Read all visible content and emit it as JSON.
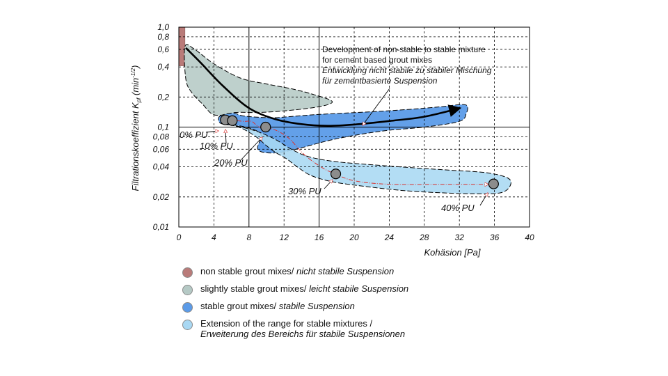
{
  "colors": {
    "non_stable": "#b97b79",
    "slightly_stable": "#b5c9c5",
    "stable": "#5b9be8",
    "extension": "#a9d8f3",
    "trend_arrow": "#000000",
    "pu_path": "#d9322f",
    "pu_marker": "#8c8c8c"
  },
  "chart_data": {
    "type": "scatter",
    "xlabel": "Kohäsion [Pa]",
    "ylabel": "Filtrationskoeffizient K",
    "ylabel_sub": "pf",
    "ylabel_unit": "(min",
    "ylabel_unit_sup": "-1/2",
    "ylabel_unit_end": ")",
    "x_scale": "linear",
    "y_scale": "log",
    "xlim": [
      0,
      40
    ],
    "ylim": [
      0.01,
      1.0
    ],
    "x_ticks": [
      "0",
      "4",
      "8",
      "12",
      "16",
      "20",
      "24",
      "28",
      "32",
      "36",
      "40"
    ],
    "y_ticks": [
      {
        "value": 1.0,
        "label": "1,0"
      },
      {
        "value": 0.8,
        "label": "0,8"
      },
      {
        "value": 0.6,
        "label": "0,6"
      },
      {
        "value": 0.4,
        "label": "0,4"
      },
      {
        "value": 0.2,
        "label": "0,2"
      },
      {
        "value": 0.1,
        "label": "0,1"
      },
      {
        "value": 0.08,
        "label": "0,08"
      },
      {
        "value": 0.06,
        "label": "0,06"
      },
      {
        "value": 0.04,
        "label": "0,04"
      },
      {
        "value": 0.02,
        "label": "0,02"
      },
      {
        "value": 0.01,
        "label": "0,01"
      }
    ],
    "series": [
      {
        "name": "PU",
        "points": [
          {
            "x": 5.3,
            "y": 0.118,
            "label": "0% PU"
          },
          {
            "x": 6.1,
            "y": 0.116,
            "label": "10% PU"
          },
          {
            "x": 9.9,
            "y": 0.1,
            "label": "20% PU"
          },
          {
            "x": 17.9,
            "y": 0.034,
            "label": "30% PU"
          },
          {
            "x": 35.9,
            "y": 0.027,
            "label": "40% PU"
          }
        ]
      }
    ],
    "regions": [
      {
        "key": "non_stable",
        "polygon": [
          [
            0,
            1.0
          ],
          [
            0.7,
            1.0
          ],
          [
            0.7,
            0.41
          ],
          [
            0,
            0.41
          ]
        ]
      },
      {
        "key": "slightly_stable",
        "polygon": [
          [
            0.7,
            0.64
          ],
          [
            1.8,
            0.6
          ],
          [
            4,
            0.43
          ],
          [
            7,
            0.31
          ],
          [
            10,
            0.27
          ],
          [
            13,
            0.24
          ],
          [
            15.5,
            0.21
          ],
          [
            17.5,
            0.18
          ],
          [
            16,
            0.16
          ],
          [
            12,
            0.145
          ],
          [
            9,
            0.14
          ],
          [
            6.5,
            0.14
          ],
          [
            5,
            0.132
          ],
          [
            3.8,
            0.135
          ],
          [
            2.7,
            0.17
          ],
          [
            1.5,
            0.22
          ],
          [
            0.8,
            0.3
          ]
        ]
      },
      {
        "key": "stable",
        "polygon": [
          [
            4.7,
            0.129
          ],
          [
            6.2,
            0.138
          ],
          [
            7.4,
            0.129
          ],
          [
            10.5,
            0.124
          ],
          [
            13,
            0.128
          ],
          [
            16,
            0.134
          ],
          [
            19,
            0.138
          ],
          [
            23,
            0.144
          ],
          [
            27,
            0.152
          ],
          [
            30,
            0.16
          ],
          [
            32.2,
            0.168
          ],
          [
            32.9,
            0.162
          ],
          [
            32.8,
            0.138
          ],
          [
            32,
            0.114
          ],
          [
            28,
            0.1
          ],
          [
            24,
            0.093
          ],
          [
            20.5,
            0.084
          ],
          [
            17,
            0.073
          ],
          [
            13,
            0.059
          ],
          [
            10.5,
            0.055
          ],
          [
            9,
            0.06
          ],
          [
            9.4,
            0.083
          ],
          [
            8.3,
            0.096
          ],
          [
            6.6,
            0.104
          ],
          [
            5.3,
            0.106
          ],
          [
            4.6,
            0.112
          ]
        ]
      },
      {
        "key": "extension",
        "polygon": [
          [
            5.8,
            0.106
          ],
          [
            8.5,
            0.093
          ],
          [
            10.8,
            0.077
          ],
          [
            13,
            0.059
          ],
          [
            15,
            0.05
          ],
          [
            18,
            0.045
          ],
          [
            22,
            0.042
          ],
          [
            27,
            0.039
          ],
          [
            31,
            0.037
          ],
          [
            35,
            0.035
          ],
          [
            37.5,
            0.031
          ],
          [
            37.8,
            0.026
          ],
          [
            36.7,
            0.022
          ],
          [
            33.5,
            0.0215
          ],
          [
            30,
            0.022
          ],
          [
            26,
            0.023
          ],
          [
            22,
            0.025
          ],
          [
            19,
            0.027
          ],
          [
            17,
            0.029
          ],
          [
            15,
            0.033
          ],
          [
            13.5,
            0.04
          ],
          [
            12.3,
            0.048
          ],
          [
            11,
            0.056
          ],
          [
            10,
            0.065
          ],
          [
            8.8,
            0.08
          ],
          [
            7.2,
            0.097
          ]
        ]
      }
    ],
    "trend_curve": [
      [
        0.8,
        0.62
      ],
      [
        2.5,
        0.44
      ],
      [
        5,
        0.26
      ],
      [
        8,
        0.155
      ],
      [
        11,
        0.12
      ],
      [
        14,
        0.107
      ],
      [
        17,
        0.103
      ],
      [
        20,
        0.106
      ],
      [
        24,
        0.115
      ],
      [
        28,
        0.127
      ],
      [
        32.1,
        0.155
      ]
    ],
    "pu_path": [
      [
        5.8,
        0.118
      ],
      [
        7.4,
        0.114
      ],
      [
        8.3,
        0.114
      ],
      [
        9.2,
        0.1
      ],
      [
        10.8,
        0.095
      ],
      [
        12.5,
        0.078
      ],
      [
        14.3,
        0.053
      ],
      [
        16.2,
        0.04
      ],
      [
        17.5,
        0.035
      ],
      [
        20,
        0.029
      ],
      [
        24,
        0.0268
      ],
      [
        30,
        0.0267
      ],
      [
        35.3,
        0.0267
      ]
    ],
    "annotations": {
      "line1": "Development of non-stable to stable mixture",
      "line2": "for cement based grout mixes",
      "line3": "Entwicklung nicht stabile zu stabiler Mischung",
      "line4": "für zementbasierte Suspension"
    }
  },
  "legend": [
    {
      "key": "non_stable",
      "en": "non stable grout mixes/ ",
      "de": "nicht stabile Suspension"
    },
    {
      "key": "slightly_stable",
      "en": "slightly stable grout mixes/ ",
      "de": "leicht stabile Suspension"
    },
    {
      "key": "stable",
      "en": "stable grout mixes/ ",
      "de": "stabile Suspension"
    },
    {
      "key": "extension",
      "en": "Extension of the range for stable mixtures /",
      "de": "Erweiterung des Bereichs für stabile Suspensionen"
    }
  ]
}
